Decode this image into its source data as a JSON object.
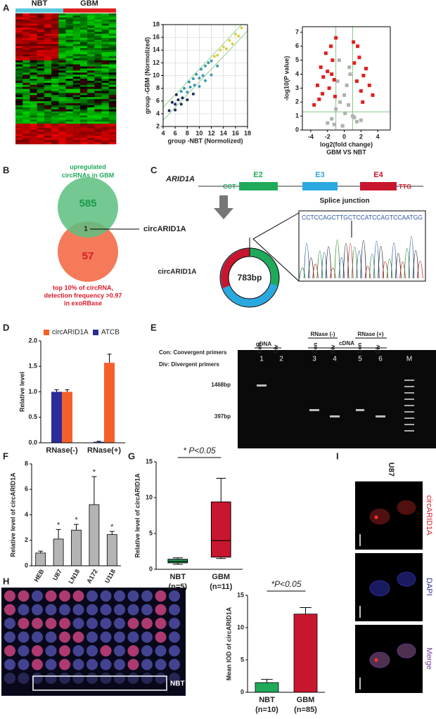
{
  "figure": {
    "panel_labels": [
      "A",
      "B",
      "C",
      "D",
      "E",
      "F",
      "G",
      "H",
      "I"
    ],
    "heatmap": {
      "groups": [
        "NBT",
        "GBM"
      ],
      "colors": [
        "#5bc8dc",
        "#e02020"
      ]
    },
    "venn": {
      "top_label": [
        "upregulated",
        "circRNAs in GBM"
      ],
      "top_count": 585,
      "overlap_count": 1,
      "bottom_count": 57,
      "overlap_name": "circARID1A",
      "bottom_label": [
        "top 10% of circRNA,",
        "detection frequency >0.97",
        "in exoRBase"
      ]
    },
    "diagram": {
      "gene": "ARID1A",
      "exons": [
        "E2",
        "E3",
        "E4"
      ],
      "left_seq": "CCT",
      "right_seq": "TTG",
      "junction": "Splice junction",
      "circ_name": "circARID1A",
      "circ_size": "783bp",
      "sequence": "CCTCCAGCTTGCTCCATCCAGTCCAATGG"
    },
    "gel": {
      "template_top": [
        "RNase (-)",
        "RNase (+)"
      ],
      "templates": [
        "gDNA",
        "cDNA"
      ],
      "primers": [
        "Con",
        "Div",
        "Con",
        "Div",
        "Con",
        "Div"
      ],
      "legend": [
        "Con: Convergent primers",
        "Div: Divergent primers"
      ],
      "lanes": [
        "1",
        "2",
        "3",
        "4",
        "5",
        "6",
        "M"
      ],
      "sizes": [
        "1468bp",
        "397bp"
      ]
    },
    "tma": {
      "label": "NBT"
    },
    "microscopy": {
      "cell_line": "U87",
      "channels": [
        "circARID1A",
        "DAPI",
        "Merge"
      ]
    }
  },
  "chart_data": [
    {
      "type": "scatter",
      "xlabel": [
        "group -NBT (Normolized)"
      ],
      "ylabel": "group -GBM (Normolized)",
      "xlim": [
        4,
        18
      ],
      "xticks": [
        4,
        6,
        8,
        10,
        12,
        14,
        16,
        18
      ],
      "ylim": [
        2,
        18
      ],
      "yticks": [
        2,
        4,
        6,
        8,
        10,
        12,
        14,
        16,
        18
      ],
      "grid": true,
      "color_scale": [
        "#1a2a5a",
        "#3a9ab0",
        "#d8d040",
        "#a02020"
      ],
      "diagonal_offsets": [
        -1,
        1
      ],
      "line_color": "#7fc97f",
      "series": [
        {
          "color": "#1a2a5a",
          "x": [
            5,
            5.5,
            6,
            6.2,
            6.5,
            7,
            7.2,
            7.5,
            8,
            8.3,
            8.5,
            9,
            9.2,
            9.5,
            10,
            10.3,
            10.6,
            11,
            11.5,
            12,
            12.5,
            13,
            13.5,
            14,
            14.5,
            15,
            15.5,
            16,
            16.5,
            17,
            6,
            7,
            8,
            9,
            10,
            11,
            12,
            13
          ],
          "values": [
            4.5,
            5.8,
            5.5,
            7,
            6.2,
            7.5,
            6.5,
            8,
            7.4,
            9,
            8.2,
            9.5,
            8.5,
            10.2,
            9.6,
            11,
            10,
            11.5,
            12,
            12.3,
            13,
            13.2,
            14,
            14.5,
            14.2,
            15.5,
            15,
            16.5,
            16.2,
            17.5,
            4.6,
            5.5,
            6.2,
            7.1,
            8.3,
            9.2,
            10.1,
            11.5
          ]
        }
      ]
    },
    {
      "type": "scatter",
      "xlabel": [
        "log2(fold change)",
        "GBM VS NBT"
      ],
      "ylabel": "-log10(P value)",
      "xlim": [
        -5,
        5.5
      ],
      "xticks": [
        -4,
        -2,
        0,
        2,
        4
      ],
      "ylim": [
        0,
        7.4
      ],
      "yticks": [
        0,
        1,
        2,
        3,
        4,
        5,
        6,
        7
      ],
      "grid": false,
      "thresholds": {
        "x": [
          -1,
          1
        ],
        "y": 1.3
      },
      "line_color": "#7fc97f",
      "series": [
        {
          "color": "#b0b0b0",
          "x": [
            -1.5,
            -1,
            -0.5,
            0,
            0.5,
            1,
            1.5,
            -0.8,
            0.3,
            0.7,
            -0.2,
            -1.2,
            1.2,
            -2,
            2,
            -0.6,
            0.6,
            0.1
          ],
          "values": [
            0.8,
            1.5,
            2,
            2.5,
            1.8,
            1,
            0.6,
            3.5,
            3.2,
            4,
            0.3,
            0.4,
            0.9,
            0.5,
            0.7,
            5,
            4.5,
            1.2
          ]
        },
        {
          "color": "#e02020",
          "x": [
            -3.2,
            -2.8,
            -2.5,
            -2.2,
            -2,
            -1.8,
            -1.6,
            -1.4,
            -1.2,
            -2.6,
            -3,
            -1.5,
            1.2,
            1.5,
            1.8,
            2,
            2.3,
            2.6,
            3,
            3.4,
            1.6,
            2.2,
            -1,
            1.1,
            -3.6,
            -1.1
          ],
          "values": [
            3.2,
            4.5,
            3.8,
            5.5,
            4.2,
            3,
            6,
            5,
            3.6,
            2.6,
            2.2,
            4,
            4.8,
            3.5,
            5.2,
            2.8,
            3.9,
            4.4,
            3.2,
            2.5,
            6,
            2,
            6.6,
            6.3,
            1.8,
            2.4
          ]
        }
      ]
    },
    {
      "type": "bar",
      "ylabel": "Relative level",
      "categories": [
        "RNase(-)",
        "RNase(+)"
      ],
      "ylim": [
        0,
        2
      ],
      "yticks": [
        {
          "value": 0,
          "label": "0.0"
        },
        {
          "value": 0.5,
          "label": "0.5"
        },
        {
          "value": 1,
          "label": "1.0"
        },
        {
          "value": 1.5,
          "label": "1.5"
        },
        {
          "value": 2,
          "label": "2.0"
        }
      ],
      "legend": "top",
      "series": [
        {
          "name": "circARID1A",
          "color": "#f5602a",
          "values": [
            1.0,
            1.57
          ],
          "errors": [
            0.04,
            0.17
          ]
        },
        {
          "name": "ATCB",
          "color": "#2b2b9a",
          "values": [
            1.0,
            0.02
          ],
          "errors": [
            0.04,
            0.01
          ]
        }
      ]
    },
    {
      "type": "bar",
      "ylabel": "Relative level of circARID1A",
      "categories": [
        "HEB",
        "U87",
        "LN18",
        "A172",
        "U118"
      ],
      "ylim": [
        0,
        8
      ],
      "yticks": [
        0,
        2,
        4,
        6,
        8
      ],
      "color": "#b4b4b4",
      "values": [
        1.0,
        2.1,
        2.8,
        4.8,
        2.45
      ],
      "errors": [
        0.15,
        0.75,
        0.45,
        2.2,
        0.25
      ],
      "significance": [
        null,
        "*",
        "*",
        "*",
        "*"
      ]
    },
    {
      "type": "box",
      "ylabel": "Relative level of circARID1A",
      "categories": [
        "NBT",
        "GBM"
      ],
      "category_notes": [
        "(n=5)",
        "(n=11)"
      ],
      "ylim": [
        0,
        15
      ],
      "yticks": [
        0,
        5,
        10,
        15
      ],
      "colors": [
        "#1faa5a",
        "#c8162e"
      ],
      "annotation": "* P<0.05",
      "boxes": [
        {
          "min": 0.7,
          "q1": 0.9,
          "median": 1.1,
          "q3": 1.4,
          "max": 1.6
        },
        {
          "min": 1.5,
          "q1": 1.7,
          "median": 4.0,
          "q3": 9.4,
          "max": 12.7
        }
      ]
    },
    {
      "type": "bar",
      "ylabel": "Mean IOD of circARID1A",
      "categories": [
        "NBT",
        "GBM"
      ],
      "category_notes": [
        "(n=10)",
        "(n=85)"
      ],
      "ylim": [
        0,
        15
      ],
      "yticks": [
        0,
        5,
        10,
        15
      ],
      "colors": [
        "#1faa5a",
        "#c8162e"
      ],
      "annotation": "*P<0.05",
      "values": [
        1.5,
        12.1
      ],
      "errors": [
        0.5,
        1.0
      ]
    }
  ]
}
